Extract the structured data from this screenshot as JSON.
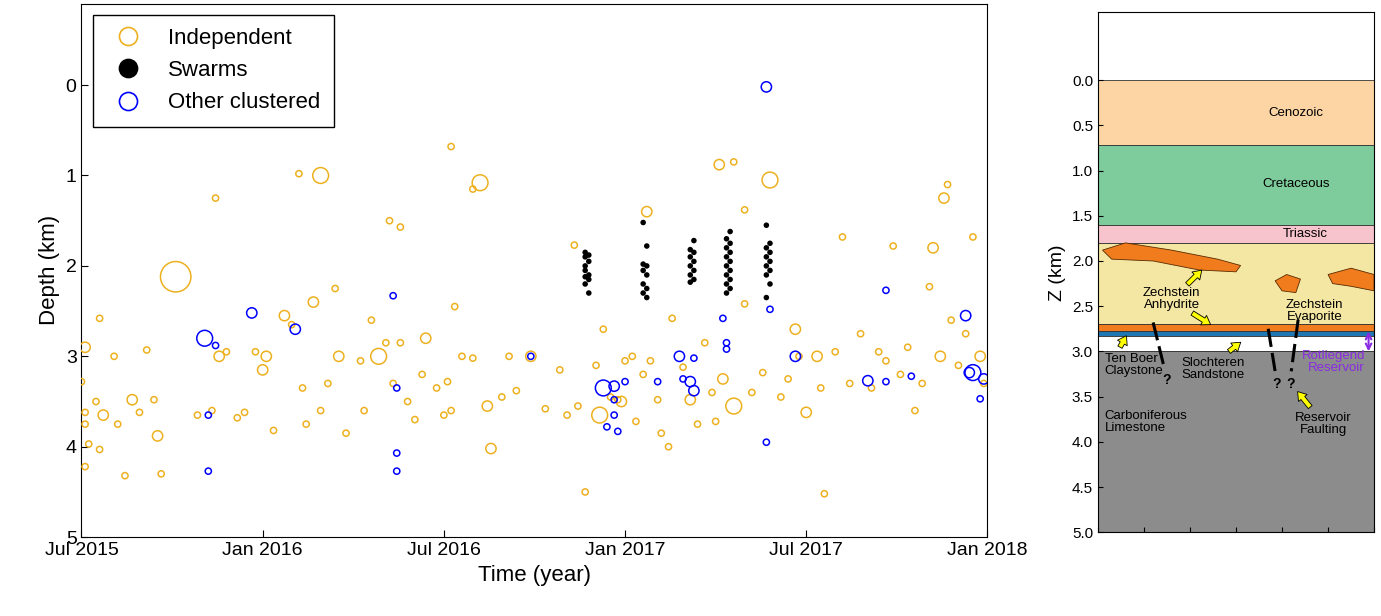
{
  "chart_data": [
    {
      "type": "scatter",
      "x_label": "Time (year)",
      "y_label": "Depth (km)",
      "xlim": [
        2015.5,
        2018.0
      ],
      "xticks": [
        {
          "value": 2015.5,
          "label": "Jul 2015"
        },
        {
          "value": 2016.0,
          "label": "Jan 2016"
        },
        {
          "value": 2016.5,
          "label": "Jul 2016"
        },
        {
          "value": 2017.0,
          "label": "Jan 2017"
        },
        {
          "value": 2017.5,
          "label": "Jul 2017"
        },
        {
          "value": 2018.0,
          "label": "Jan 2018"
        }
      ],
      "ylim": [
        5,
        -0.9
      ],
      "yticks": [
        0,
        1,
        2,
        3,
        4,
        5
      ],
      "grid": false,
      "legend": "upper left",
      "series": [
        {
          "name": "Independent",
          "color": "#EDB120",
          "marker": "open_circle",
          "x": [
            2015.51,
            2015.5,
            2015.51,
            2015.51,
            2015.52,
            2015.51,
            2015.54,
            2015.55,
            2015.55,
            2015.56,
            2015.59,
            2015.6,
            2015.62,
            2015.64,
            2015.66,
            2015.68,
            2015.7,
            2015.71,
            2015.72,
            2015.76,
            2015.82,
            2015.86,
            2015.87,
            2015.88,
            2015.9,
            2015.93,
            2015.95,
            2015.98,
            2016.0,
            2016.01,
            2016.03,
            2016.06,
            2016.08,
            2016.1,
            2016.11,
            2016.12,
            2016.14,
            2016.16,
            2016.18,
            2016.2,
            2016.21,
            2016.23,
            2016.16,
            2016.27,
            2016.28,
            2016.3,
            2016.32,
            2016.34,
            2016.35,
            2016.36,
            2016.38,
            2016.38,
            2016.4,
            2016.42,
            2016.44,
            2016.45,
            2016.48,
            2016.5,
            2016.51,
            2016.52,
            2016.53,
            2016.55,
            2016.58,
            2016.52,
            2016.62,
            2016.63,
            2016.66,
            2016.68,
            2016.7,
            2016.58,
            2016.74,
            2016.6,
            2016.78,
            2016.82,
            2016.84,
            2016.86,
            2016.87,
            2016.89,
            2016.92,
            2016.93,
            2016.94,
            2016.96,
            2016.98,
            2016.99,
            2017.0,
            2017.02,
            2017.03,
            2017.05,
            2017.06,
            2017.07,
            2017.09,
            2017.1,
            2017.12,
            2017.13,
            2017.16,
            2017.18,
            2017.2,
            2017.22,
            2017.24,
            2017.25,
            2017.27,
            2017.3,
            2017.33,
            2017.35,
            2017.38,
            2017.26,
            2017.33,
            2017.43,
            2017.45,
            2017.47,
            2017.48,
            2017.5,
            2017.3,
            2017.53,
            2017.54,
            2017.55,
            2017.4,
            2017.58,
            2017.6,
            2017.62,
            2017.65,
            2017.68,
            2017.7,
            2017.72,
            2017.74,
            2017.76,
            2017.78,
            2017.8,
            2017.82,
            2017.84,
            2017.85,
            2017.87,
            2017.88,
            2017.9,
            2017.92,
            2017.94,
            2017.96,
            2017.98,
            2017.99,
            2017.89
          ],
          "values": [
            2.9,
            3.28,
            3.62,
            3.75,
            3.97,
            4.22,
            3.5,
            2.58,
            4.03,
            3.65,
            3.0,
            3.75,
            4.32,
            3.48,
            3.62,
            2.93,
            3.48,
            3.88,
            4.3,
            2.12,
            3.65,
            3.6,
            1.25,
            3.0,
            2.95,
            3.68,
            3.62,
            2.95,
            3.15,
            3.0,
            3.82,
            2.55,
            2.65,
            0.98,
            3.35,
            3.75,
            2.4,
            3.6,
            3.3,
            2.25,
            3.0,
            3.85,
            1.0,
            3.05,
            3.6,
            2.6,
            3.0,
            2.85,
            1.5,
            3.3,
            1.57,
            2.85,
            3.5,
            3.7,
            3.2,
            2.8,
            3.35,
            3.65,
            3.28,
            3.6,
            2.45,
            3.0,
            3.02,
            0.68,
            3.55,
            4.02,
            3.45,
            3.0,
            3.38,
            1.15,
            3.0,
            1.08,
            3.58,
            3.15,
            3.65,
            1.77,
            3.55,
            4.5,
            3.1,
            3.65,
            2.7,
            3.45,
            3.48,
            3.5,
            3.05,
            3.0,
            3.72,
            3.2,
            1.4,
            3.05,
            3.48,
            3.85,
            4.0,
            2.58,
            3.12,
            3.48,
            3.75,
            2.85,
            3.4,
            3.72,
            3.25,
            3.55,
            2.42,
            3.4,
            3.18,
            0.88,
            1.38,
            3.45,
            3.25,
            2.7,
            3.0,
            3.62,
            0.85,
            3.0,
            3.35,
            4.52,
            1.05,
            2.95,
            1.68,
            3.3,
            2.75,
            3.35,
            2.95,
            3.05,
            1.78,
            3.2,
            2.9,
            3.6,
            3.3,
            2.23,
            1.8,
            3.0,
            1.25,
            2.6,
            3.1,
            2.75,
            1.68,
            3.0,
            3.3,
            1.1
          ],
          "sizes": [
            55,
            20,
            20,
            20,
            20,
            20,
            20,
            20,
            20,
            55,
            20,
            20,
            20,
            55,
            20,
            20,
            20,
            55,
            20,
            480,
            20,
            20,
            20,
            55,
            20,
            20,
            20,
            20,
            55,
            55,
            20,
            55,
            20,
            20,
            20,
            20,
            55,
            20,
            20,
            20,
            55,
            20,
            130,
            20,
            20,
            20,
            130,
            20,
            20,
            20,
            20,
            20,
            20,
            20,
            20,
            55,
            20,
            20,
            20,
            20,
            20,
            20,
            20,
            20,
            55,
            55,
            20,
            20,
            20,
            20,
            55,
            130,
            20,
            20,
            20,
            20,
            20,
            20,
            20,
            130,
            20,
            20,
            20,
            55,
            20,
            20,
            20,
            20,
            55,
            20,
            20,
            20,
            20,
            20,
            20,
            55,
            20,
            20,
            20,
            20,
            55,
            130,
            20,
            20,
            20,
            55,
            20,
            20,
            20,
            55,
            20,
            55,
            20,
            55,
            20,
            20,
            130,
            20,
            20,
            20,
            20,
            20,
            20,
            20,
            20,
            20,
            20,
            20,
            20,
            20,
            55,
            55,
            55,
            20,
            20,
            20,
            20,
            55,
            20,
            20
          ]
        },
        {
          "name": "Swarms",
          "color": "#000000",
          "marker": "circle",
          "x": [
            2016.89,
            2016.9,
            2016.89,
            2016.9,
            2016.89,
            2016.89,
            2016.9,
            2016.89,
            2016.9,
            2016.89,
            2016.9,
            2017.05,
            2017.06,
            2017.05,
            2017.06,
            2017.05,
            2017.06,
            2017.05,
            2017.06,
            2017.05,
            2017.06,
            2017.19,
            2017.18,
            2017.19,
            2017.18,
            2017.19,
            2017.18,
            2017.19,
            2017.18,
            2017.19,
            2017.18,
            2017.29,
            2017.28,
            2017.29,
            2017.28,
            2017.29,
            2017.28,
            2017.29,
            2017.28,
            2017.29,
            2017.28,
            2017.29,
            2017.28,
            2017.29,
            2017.28,
            2017.39,
            2017.4,
            2017.39,
            2017.4,
            2017.39,
            2017.4,
            2017.39,
            2017.4,
            2017.39,
            2017.4,
            2017.39
          ],
          "values": [
            1.85,
            1.88,
            1.9,
            1.95,
            2.0,
            2.05,
            2.1,
            2.12,
            2.15,
            2.2,
            2.3,
            1.52,
            1.78,
            1.98,
            2.0,
            2.05,
            2.1,
            2.2,
            2.25,
            2.3,
            2.35,
            1.72,
            1.82,
            1.85,
            1.9,
            1.95,
            2.0,
            2.05,
            2.1,
            2.15,
            2.18,
            1.62,
            1.7,
            1.75,
            1.8,
            1.85,
            1.9,
            1.95,
            2.0,
            2.05,
            2.1,
            2.15,
            2.2,
            2.25,
            2.3,
            1.55,
            1.75,
            1.8,
            1.85,
            1.9,
            1.95,
            2.0,
            2.05,
            2.1,
            2.2,
            2.35
          ]
        },
        {
          "name": "Other clustered",
          "color": "#0000FF",
          "marker": "open_circle",
          "x": [
            2015.84,
            2015.85,
            2015.85,
            2015.87,
            2015.97,
            2016.09,
            2016.36,
            2016.37,
            2016.37,
            2016.37,
            2016.74,
            2016.94,
            2016.97,
            2016.97,
            2016.97,
            2016.98,
            2016.95,
            2017.0,
            2017.09,
            2017.15,
            2017.16,
            2017.19,
            2017.18,
            2017.19,
            2017.27,
            2017.28,
            2017.28,
            2017.39,
            2017.4,
            2017.39,
            2017.47,
            2017.67,
            2017.72,
            2017.72,
            2017.79,
            2017.94,
            2017.95,
            2017.96,
            2017.98,
            2017.99
          ],
          "values": [
            2.8,
            3.65,
            4.27,
            2.88,
            2.52,
            2.7,
            2.33,
            3.35,
            4.07,
            4.27,
            3.0,
            3.35,
            3.33,
            3.48,
            3.65,
            3.83,
            3.78,
            3.28,
            3.28,
            3.0,
            3.25,
            3.02,
            3.28,
            3.38,
            2.58,
            2.85,
            2.92,
            3.95,
            2.48,
            0.02,
            3.0,
            3.27,
            2.27,
            3.28,
            3.22,
            2.55,
            3.18,
            3.18,
            3.47,
            3.25
          ],
          "sizes": [
            130,
            20,
            20,
            20,
            55,
            55,
            20,
            20,
            20,
            20,
            20,
            130,
            55,
            20,
            20,
            20,
            20,
            20,
            20,
            55,
            20,
            20,
            55,
            55,
            20,
            20,
            20,
            20,
            20,
            55,
            55,
            55,
            20,
            20,
            20,
            55,
            55,
            130,
            20,
            55
          ]
        }
      ]
    },
    {
      "type": "cross_section",
      "y_label": "Z (km)",
      "xlim": [
        0,
        6
      ],
      "xticks": [
        0,
        1,
        2,
        3,
        4,
        5,
        6
      ],
      "ylim": [
        5.0,
        -0.75
      ],
      "yticks": [
        {
          "value": 0,
          "label": "0.0"
        },
        {
          "value": 0.5,
          "label": "0.5"
        },
        {
          "value": 1,
          "label": "1.0"
        },
        {
          "value": 1.5,
          "label": "1.5"
        },
        {
          "value": 2,
          "label": "2.0"
        },
        {
          "value": 2.5,
          "label": "2.5"
        },
        {
          "value": 3,
          "label": "3.0"
        },
        {
          "value": 3.5,
          "label": "3.5"
        },
        {
          "value": 4,
          "label": "4.0"
        },
        {
          "value": 4.5,
          "label": "4.5"
        },
        {
          "value": 5,
          "label": "5.0"
        }
      ],
      "tick_labels": "y",
      "layers": [
        {
          "top": 0.0,
          "bottom": 0.72,
          "color": "#FDD5A4"
        },
        {
          "top": 0.72,
          "bottom": 1.6,
          "color": "#7ECB9C"
        },
        {
          "top": 1.6,
          "bottom": 1.8,
          "color": "#F7C3CC"
        },
        {
          "top": 1.8,
          "bottom": 2.7,
          "color": "#F4E6A3"
        },
        {
          "top": 2.7,
          "bottom": 2.78,
          "color": "#F07C1E"
        },
        {
          "top": 2.78,
          "bottom": 2.83,
          "color": "#1F77B4"
        },
        {
          "top": 2.83,
          "bottom": 3.0,
          "color": "#FFFFFF"
        },
        {
          "top": 3.0,
          "bottom": 5.0,
          "color": "#8C8C8C"
        }
      ],
      "annotations": [
        "Cenozoic",
        "Cretaceous",
        "Triassic",
        "Zechstein\nAnhydrite",
        "Zechstein\nEvaporite",
        "Ten Boer\nClaystone",
        "Slochteren\nSandstone",
        "Carboniferous\nLimestone",
        "Reservoir\nFaulting"
      ],
      "fault_mark": "?",
      "reservoir": {
        "label": "Rotliegend\nReservoir",
        "top": 2.78,
        "bottom": 3.0,
        "color": "#8A2BE2"
      }
    }
  ]
}
